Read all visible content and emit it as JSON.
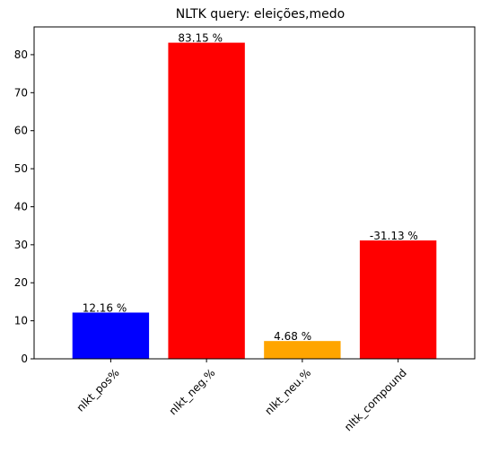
{
  "chart_data": {
    "type": "bar",
    "title": "NLTK query: eleições,medo",
    "xlabel": "",
    "ylabel": "",
    "categories": [
      "nlkt_pos%",
      "nlkt_neg.%",
      "nlkt_neu.%",
      "nltk_compound"
    ],
    "values": [
      12.16,
      83.15,
      4.68,
      31.13
    ],
    "data_labels": [
      "12.16 %",
      "83.15 %",
      "4.68 %",
      "-31.13 %"
    ],
    "colors": [
      "#0000ff",
      "#ff0000",
      "#ffa500",
      "#ff0000"
    ],
    "ylim": [
      0,
      87.3
    ],
    "yticks": [
      0,
      10,
      20,
      30,
      40,
      50,
      60,
      70,
      80
    ],
    "xtick_rotation_deg": 45,
    "grid": false,
    "legend": "none"
  }
}
